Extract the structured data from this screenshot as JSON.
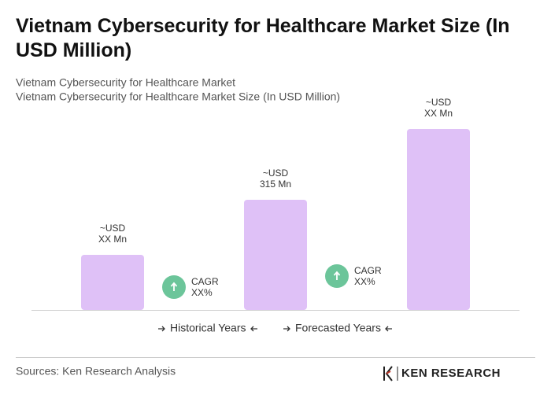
{
  "chart_data": {
    "type": "bar",
    "title": "Vietnam Cybersecurity for Healthcare Market Size (In USD Million)",
    "subtitles": [
      "Vietnam Cybersecurity for Healthcare Market",
      "Vietnam Cybersecurity for Healthcare Market Size (In USD Million)"
    ],
    "values": [
      157.5,
      315,
      517.5
    ],
    "value_labels": [
      [
        "~USD",
        "XX Mn"
      ],
      [
        "~USD",
        "315 Mn"
      ],
      [
        "~USD",
        "XX Mn"
      ]
    ],
    "color": "#dfc1f7",
    "annotations": [
      {
        "label": "CAGR",
        "value_label": "XX%"
      },
      {
        "label": "CAGR",
        "value_label": "XX%"
      }
    ],
    "annotation_color": "#6cc59a",
    "legend": [
      "Historical Years",
      "Forecasted Years"
    ],
    "source": "Sources: Ken Research Analysis",
    "logo": "KEN RESEARCH"
  }
}
